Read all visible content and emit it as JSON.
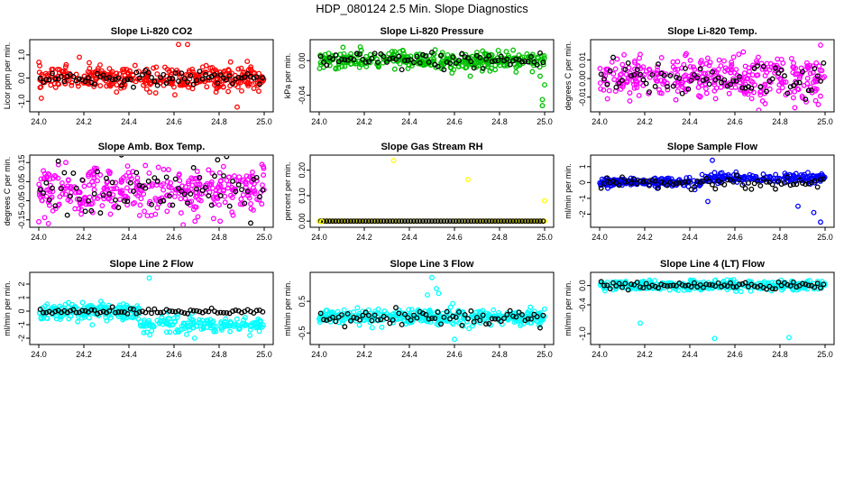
{
  "figure_title": "HDP_080124  2.5 Min. Slope Diagnostics",
  "colors": {
    "overlay": "#000000",
    "axis": "#000000",
    "background": "#ffffff"
  },
  "chart_data": [
    {
      "type": "scatter",
      "title": "Slope Li-820 CO2",
      "ylabel": "Licor ppm per min.",
      "color": "#ff0000",
      "xlim": [
        24.0,
        25.0
      ],
      "ylim": [
        -1.3,
        1.5
      ],
      "xticks": [
        "24.0",
        "24.2",
        "24.4",
        "24.6",
        "24.8",
        "25.0"
      ],
      "yticks": [
        {
          "v": -1.0,
          "label": "-1.0"
        },
        {
          "v": 0.0,
          "label": "0.0"
        },
        {
          "v": 1.0,
          "label": "1.0"
        }
      ],
      "main_spread": 0.25,
      "overlay_spread": 0.15,
      "main_count": 360,
      "overlay_count": 75,
      "outliers": [
        [
          24.62,
          1.45
        ],
        [
          24.66,
          1.45
        ],
        [
          24.88,
          -1.25
        ],
        [
          24.18,
          0.9
        ]
      ]
    },
    {
      "type": "scatter",
      "title": "Slope Li-820 Pressure",
      "ylabel": "kPa per min.",
      "color": "#00c000",
      "xlim": [
        24.0,
        25.0
      ],
      "ylim": [
        -0.055,
        0.02
      ],
      "xticks": [
        "24.0",
        "24.2",
        "24.4",
        "24.6",
        "24.8",
        "25.0"
      ],
      "yticks": [
        {
          "v": -0.04,
          "label": "-0.04"
        },
        {
          "v": 0.0,
          "label": "0.00"
        }
      ],
      "main_spread": 0.005,
      "overlay_spread": 0.005,
      "main_count": 360,
      "overlay_count": 75,
      "outliers": [
        [
          24.99,
          -0.052
        ],
        [
          24.99,
          -0.045
        ],
        [
          25.0,
          -0.028
        ],
        [
          24.98,
          -0.018
        ],
        [
          24.67,
          -0.018
        ]
      ]
    },
    {
      "type": "scatter",
      "title": "Slope Li-820 Temp.",
      "ylabel": "degrees C per min.",
      "color": "#ff00ff",
      "xlim": [
        24.0,
        25.0
      ],
      "ylim": [
        -0.016,
        0.019
      ],
      "xticks": [
        "24.0",
        "24.2",
        "24.4",
        "24.6",
        "24.8",
        "25.0"
      ],
      "yticks": [
        {
          "v": -0.01,
          "label": "-0.01"
        },
        {
          "v": 0.0,
          "label": "0.00"
        },
        {
          "v": 0.01,
          "label": "0.01"
        }
      ],
      "main_spread": 0.006,
      "overlay_spread": 0.005,
      "main_count": 360,
      "overlay_count": 75,
      "outliers": [
        [
          24.98,
          0.018
        ],
        [
          24.97,
          -0.014
        ],
        [
          24.18,
          0.013
        ]
      ]
    },
    {
      "type": "scatter",
      "title": "Slope Amb. Box Temp.",
      "ylabel": "degrees C per min.",
      "color": "#ff00ff",
      "xlim": [
        24.0,
        25.0
      ],
      "ylim": [
        -0.17,
        0.17
      ],
      "xticks": [
        "24.0",
        "24.2",
        "24.4",
        "24.6",
        "24.8",
        "25.0"
      ],
      "yticks": [
        {
          "v": -0.15,
          "label": "-0.15"
        },
        {
          "v": -0.05,
          "label": "-0.05"
        },
        {
          "v": 0.05,
          "label": "0.05"
        },
        {
          "v": 0.15,
          "label": "0.15"
        }
      ],
      "main_spread": 0.06,
      "overlay_spread": 0.07,
      "main_count": 360,
      "overlay_count": 75,
      "outliers": [
        [
          24.12,
          0.15
        ],
        [
          24.99,
          0.14
        ],
        [
          24.0,
          -0.16
        ]
      ]
    },
    {
      "type": "scatter",
      "title": "Slope Gas Stream RH",
      "ylabel": "percent per min.",
      "color": "#ffff00",
      "xlim": [
        24.0,
        25.0
      ],
      "ylim": [
        -0.01,
        0.245
      ],
      "xticks": [
        "24.0",
        "24.2",
        "24.4",
        "24.6",
        "24.8",
        "25.0"
      ],
      "yticks": [
        {
          "v": 0.0,
          "label": "0.00"
        },
        {
          "v": 0.1,
          "label": "0.10"
        },
        {
          "v": 0.2,
          "label": "0.20"
        }
      ],
      "main_spread": 0.0,
      "overlay_spread": 0.0,
      "main_count": 75,
      "overlay_count": 75,
      "outliers": [
        [
          24.33,
          0.238
        ],
        [
          24.66,
          0.163
        ],
        [
          25.0,
          0.08
        ],
        [
          24.01,
          -0.002
        ]
      ]
    },
    {
      "type": "scatter",
      "title": "Slope Sample Flow",
      "ylabel": "ml/min per min.",
      "color": "#0000ff",
      "xlim": [
        24.0,
        25.0
      ],
      "ylim": [
        -2.6,
        1.5
      ],
      "xticks": [
        "24.0",
        "24.2",
        "24.4",
        "24.6",
        "24.8",
        "25.0"
      ],
      "yticks": [
        {
          "v": -2,
          "label": "-2"
        },
        {
          "v": -1,
          "label": "-1"
        },
        {
          "v": 0,
          "label": "0"
        },
        {
          "v": 1,
          "label": "1"
        }
      ],
      "main_spread": 0.15,
      "overlay_spread": 0.2,
      "main_count": 360,
      "overlay_count": 75,
      "outliers": [
        [
          24.5,
          1.4
        ],
        [
          24.98,
          -2.5
        ],
        [
          24.95,
          -1.9
        ],
        [
          24.48,
          -1.2
        ],
        [
          24.88,
          -1.5
        ]
      ]
    },
    {
      "type": "scatter",
      "title": "Slope Line 2 Flow",
      "ylabel": "ml/min per min.",
      "color": "#00ffff",
      "xlim": [
        24.0,
        25.0
      ],
      "ylim": [
        -2.2,
        2.6
      ],
      "xticks": [
        "24.0",
        "24.2",
        "24.4",
        "24.6",
        "24.8",
        "25.0"
      ],
      "yticks": [
        {
          "v": -2,
          "label": "-2"
        },
        {
          "v": -1,
          "label": "-1"
        },
        {
          "v": 0,
          "label": "0"
        },
        {
          "v": 1,
          "label": "1"
        },
        {
          "v": 2,
          "label": "2"
        }
      ],
      "main_spread": 0.3,
      "overlay_spread": 0.12,
      "main_count": 360,
      "overlay_count": 75,
      "outliers": [
        [
          24.49,
          2.45
        ]
      ]
    },
    {
      "type": "scatter",
      "title": "Slope Line 3 Flow",
      "ylabel": "ml/min per min.",
      "color": "#00ffff",
      "xlim": [
        24.0,
        25.0
      ],
      "ylim": [
        -0.75,
        1.3
      ],
      "xticks": [
        "24.0",
        "24.2",
        "24.4",
        "24.6",
        "24.8",
        "25.0"
      ],
      "yticks": [
        {
          "v": -0.5,
          "label": "-0.5"
        },
        {
          "v": 0.5,
          "label": "0.5"
        }
      ],
      "main_spread": 0.12,
      "overlay_spread": 0.12,
      "main_count": 360,
      "overlay_count": 75,
      "outliers": [
        [
          24.5,
          1.25
        ],
        [
          24.52,
          0.9
        ],
        [
          24.53,
          0.75
        ],
        [
          24.48,
          0.7
        ],
        [
          24.6,
          -0.7
        ]
      ]
    },
    {
      "type": "scatter",
      "title": "Slope Line 4 (LT) Flow",
      "ylabel": "ml/min per min.",
      "color": "#00ffff",
      "xlim": [
        24.0,
        25.0
      ],
      "ylim": [
        -1.15,
        0.2
      ],
      "xticks": [
        "24.0",
        "24.2",
        "24.4",
        "24.6",
        "24.8",
        "25.0"
      ],
      "yticks": [
        {
          "v": -1.0,
          "label": "-1.0"
        },
        {
          "v": -0.4,
          "label": "-0.4"
        },
        {
          "v": 0.0,
          "label": "0.0"
        }
      ],
      "main_spread": 0.05,
      "overlay_spread": 0.04,
      "main_count": 360,
      "overlay_count": 75,
      "outliers": [
        [
          24.51,
          -1.1
        ],
        [
          24.84,
          -1.08
        ],
        [
          24.18,
          -0.78
        ]
      ]
    }
  ]
}
